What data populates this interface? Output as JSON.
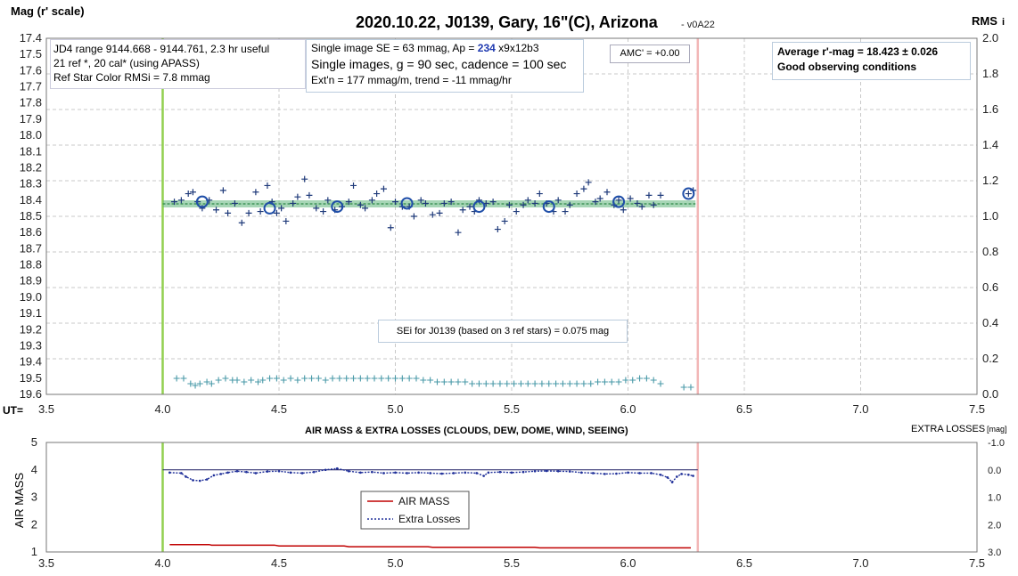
{
  "header": {
    "title": "2020.10.22, J0139, Gary, 16\"(C), Arizona",
    "version": "- v0A22",
    "left_axis_label": "Mag (r' scale)",
    "right_axis_label_main": "RMS",
    "right_axis_label_sub": "i",
    "ut_label": "UT="
  },
  "info_box_left": [
    "JD4 range 9144.668 - 9144.761, 2.3 hr useful",
    "21 ref *, 20 cal* (using APASS)",
    "Ref Star Color RMSi = 7.8 mmag"
  ],
  "info_box_mid": {
    "line1_prefix": "Single image SE = 63 mmag, Ap = ",
    "line1_ap": "234",
    "line1_suffix": " x9x12b3",
    "line2": "Single images, g = 90 sec, cadence = 100 sec",
    "line3": "Ext'n = 177 mmag/m, trend = -11 mmag/hr"
  },
  "amc_box": "AMC' = +0.00",
  "avg_box": {
    "line1": "Average r'-mag =  18.423 ± 0.026",
    "line2": "Good observing conditions"
  },
  "sei_box": "SEi for J0139 (based on 3 ref stars) = 0.075 mag",
  "lower_chart": {
    "title": "AIR MASS & EXTRA LOSSES (CLOUDS, DEW, DOME, WIND, SEEING)",
    "left_label": "AIR MASS",
    "right_label_main": "EXTRA LOSSES",
    "right_label_unit": "[mag]",
    "legend": [
      "AIR MASS",
      "Extra Losses"
    ]
  },
  "colors": {
    "mag_points": "#1f3a7a",
    "avg_circles": "#1f4ea8",
    "fit_band": "#5fb57a",
    "rms_points": "#4a9aa8",
    "start_line": "#92d050",
    "end_line": "#f2b6b6",
    "air_mass": "#c00000",
    "extra_losses": "#1f2f99",
    "grid": "#c8c8c8"
  },
  "chart_data": [
    {
      "type": "scatter",
      "title": "2020.10.22, J0139, Gary, 16\"(C), Arizona",
      "xlabel": "UT",
      "ylabel": "Mag (r' scale)",
      "y2label": "RMS i",
      "xlim": [
        3.5,
        7.5
      ],
      "ylim": [
        17.4,
        19.6
      ],
      "y_inverted": true,
      "y2lim": [
        0.0,
        2.0
      ],
      "x_ticks": [
        3.5,
        4.0,
        4.5,
        5.0,
        5.5,
        6.0,
        6.5,
        7.0,
        7.5
      ],
      "y_ticks": [
        17.4,
        17.5,
        17.6,
        17.7,
        17.8,
        17.9,
        18.0,
        18.1,
        18.2,
        18.3,
        18.4,
        18.5,
        18.6,
        18.7,
        18.8,
        18.9,
        19.0,
        19.1,
        19.2,
        19.3,
        19.4,
        19.5,
        19.6
      ],
      "y2_ticks": [
        0.0,
        0.2,
        0.4,
        0.6,
        0.8,
        1.0,
        1.2,
        1.4,
        1.6,
        1.8,
        2.0
      ],
      "grid": true,
      "vlines": {
        "start": 4.0,
        "end": 6.3
      },
      "series": [
        {
          "marker": "plus",
          "axis": "y",
          "x": [
            4.05,
            4.08,
            4.11,
            4.13,
            4.15,
            4.17,
            4.2,
            4.23,
            4.26,
            4.28,
            4.31,
            4.34,
            4.37,
            4.4,
            4.42,
            4.45,
            4.47,
            4.49,
            4.51,
            4.53,
            4.56,
            4.58,
            4.61,
            4.63,
            4.66,
            4.69,
            4.71,
            4.74,
            4.77,
            4.8,
            4.82,
            4.85,
            4.87,
            4.9,
            4.92,
            4.95,
            4.98,
            5.0,
            5.03,
            5.06,
            5.08,
            5.11,
            5.13,
            5.16,
            5.19,
            5.21,
            5.24,
            5.27,
            5.29,
            5.32,
            5.34,
            5.36,
            5.39,
            5.42,
            5.44,
            5.47,
            5.49,
            5.52,
            5.55,
            5.57,
            5.6,
            5.62,
            5.65,
            5.68,
            5.7,
            5.73,
            5.75,
            5.78,
            5.81,
            5.83,
            5.86,
            5.88,
            5.91,
            5.94,
            5.96,
            5.98,
            6.01,
            6.04,
            6.06,
            6.09,
            6.11,
            6.14,
            6.26,
            6.28
          ],
          "y": [
            18.41,
            18.4,
            18.36,
            18.35,
            18.41,
            18.45,
            18.4,
            18.46,
            18.34,
            18.48,
            18.42,
            18.54,
            18.48,
            18.35,
            18.47,
            18.31,
            18.41,
            18.48,
            18.45,
            18.53,
            18.42,
            18.38,
            18.27,
            18.37,
            18.45,
            18.47,
            18.4,
            18.46,
            18.44,
            18.41,
            18.31,
            18.43,
            18.45,
            18.4,
            18.36,
            18.33,
            18.57,
            18.41,
            18.44,
            18.44,
            18.5,
            18.4,
            18.42,
            18.49,
            18.48,
            18.42,
            18.41,
            18.6,
            18.46,
            18.44,
            18.47,
            18.4,
            18.42,
            18.41,
            18.58,
            18.53,
            18.43,
            18.47,
            18.43,
            18.4,
            18.42,
            18.36,
            18.42,
            18.47,
            18.4,
            18.47,
            18.43,
            18.36,
            18.33,
            18.29,
            18.41,
            18.39,
            18.35,
            18.43,
            18.4,
            18.46,
            18.39,
            18.42,
            18.44,
            18.37,
            18.43,
            18.37,
            18.36,
            18.34
          ]
        },
        {
          "marker": "circle",
          "axis": "y",
          "x": [
            4.17,
            4.46,
            4.75,
            5.05,
            5.36,
            5.66,
            5.96,
            6.26
          ],
          "y": [
            18.41,
            18.45,
            18.44,
            18.42,
            18.44,
            18.44,
            18.41,
            18.36
          ]
        },
        {
          "marker": "band",
          "axis": "y",
          "x": [
            4.0,
            6.29
          ],
          "y": [
            18.423,
            18.423
          ]
        },
        {
          "marker": "plus",
          "axis": "y2",
          "x": [
            4.06,
            4.09,
            4.12,
            4.14,
            4.16,
            4.19,
            4.21,
            4.24,
            4.27,
            4.3,
            4.32,
            4.35,
            4.38,
            4.41,
            4.43,
            4.46,
            4.49,
            4.52,
            4.55,
            4.58,
            4.61,
            4.64,
            4.67,
            4.7,
            4.73,
            4.76,
            4.79,
            4.82,
            4.85,
            4.88,
            4.91,
            4.94,
            4.97,
            5.0,
            5.03,
            5.06,
            5.09,
            5.12,
            5.15,
            5.18,
            5.21,
            5.24,
            5.27,
            5.3,
            5.33,
            5.36,
            5.39,
            5.42,
            5.45,
            5.48,
            5.51,
            5.54,
            5.57,
            5.6,
            5.63,
            5.66,
            5.69,
            5.72,
            5.75,
            5.78,
            5.81,
            5.84,
            5.87,
            5.9,
            5.93,
            5.96,
            5.99,
            6.02,
            6.05,
            6.08,
            6.11,
            6.14,
            6.24,
            6.27
          ],
          "y": [
            0.09,
            0.09,
            0.06,
            0.05,
            0.06,
            0.07,
            0.06,
            0.08,
            0.09,
            0.08,
            0.08,
            0.07,
            0.08,
            0.07,
            0.08,
            0.09,
            0.09,
            0.08,
            0.09,
            0.08,
            0.09,
            0.09,
            0.09,
            0.08,
            0.09,
            0.09,
            0.09,
            0.09,
            0.09,
            0.09,
            0.09,
            0.09,
            0.09,
            0.09,
            0.09,
            0.09,
            0.09,
            0.08,
            0.08,
            0.07,
            0.07,
            0.07,
            0.07,
            0.07,
            0.06,
            0.06,
            0.06,
            0.06,
            0.06,
            0.06,
            0.06,
            0.06,
            0.06,
            0.06,
            0.06,
            0.06,
            0.06,
            0.06,
            0.06,
            0.06,
            0.06,
            0.06,
            0.07,
            0.07,
            0.07,
            0.07,
            0.08,
            0.08,
            0.09,
            0.09,
            0.08,
            0.06,
            0.04,
            0.04
          ]
        }
      ]
    },
    {
      "type": "line",
      "title": "AIR MASS & EXTRA LOSSES (CLOUDS, DEW, DOME, WIND, SEEING)",
      "ylabel": "AIR MASS",
      "y2label": "EXTRA LOSSES [mag]",
      "xlim": [
        3.5,
        7.5
      ],
      "ylim": [
        1,
        5
      ],
      "y2lim": [
        -1.0,
        3.0
      ],
      "y2_inverted": true,
      "x_ticks": [
        3.5,
        4.0,
        4.5,
        5.0,
        5.5,
        6.0,
        6.5,
        7.0,
        7.5
      ],
      "y_ticks": [
        1,
        2,
        3,
        4,
        5
      ],
      "y2_ticks": [
        -1.0,
        0.0,
        1.0,
        2.0,
        3.0
      ],
      "vlines": {
        "start": 4.0,
        "end": 6.3
      },
      "hline": {
        "axis": "y",
        "value": 4.0,
        "from": 4.0,
        "to": 6.3
      },
      "series": [
        {
          "name": "AIR MASS",
          "axis": "y",
          "x": [
            4.03,
            4.2,
            4.21,
            4.48,
            4.5,
            4.78,
            4.8,
            5.14,
            5.16,
            5.6,
            5.62,
            6.27
          ],
          "y": [
            1.27,
            1.27,
            1.25,
            1.25,
            1.22,
            1.22,
            1.19,
            1.19,
            1.17,
            1.17,
            1.15,
            1.15
          ]
        },
        {
          "name": "Extra Losses",
          "axis": "y2",
          "x": [
            4.03,
            4.08,
            4.1,
            4.13,
            4.16,
            4.19,
            4.22,
            4.25,
            4.28,
            4.32,
            4.36,
            4.4,
            4.45,
            4.5,
            4.55,
            4.6,
            4.65,
            4.7,
            4.75,
            4.8,
            4.85,
            4.9,
            4.95,
            5.0,
            5.05,
            5.1,
            5.15,
            5.2,
            5.25,
            5.3,
            5.35,
            5.38,
            5.4,
            5.45,
            5.5,
            5.55,
            5.6,
            5.65,
            5.7,
            5.75,
            5.8,
            5.85,
            5.9,
            5.95,
            6.0,
            6.05,
            6.1,
            6.14,
            6.17,
            6.19,
            6.21,
            6.23,
            6.26,
            6.28
          ],
          "y": [
            0.1,
            0.12,
            0.25,
            0.38,
            0.4,
            0.35,
            0.2,
            0.15,
            0.1,
            0.05,
            0.08,
            0.12,
            0.06,
            0.05,
            0.1,
            0.12,
            0.08,
            0.0,
            -0.05,
            0.05,
            0.1,
            0.08,
            0.12,
            0.1,
            0.12,
            0.1,
            0.12,
            0.14,
            0.12,
            0.1,
            0.12,
            0.22,
            0.1,
            0.08,
            0.1,
            0.08,
            0.05,
            0.04,
            0.05,
            0.06,
            0.1,
            0.12,
            0.15,
            0.14,
            0.1,
            0.12,
            0.12,
            0.18,
            0.28,
            0.45,
            0.25,
            0.15,
            0.18,
            0.22
          ]
        }
      ]
    }
  ]
}
